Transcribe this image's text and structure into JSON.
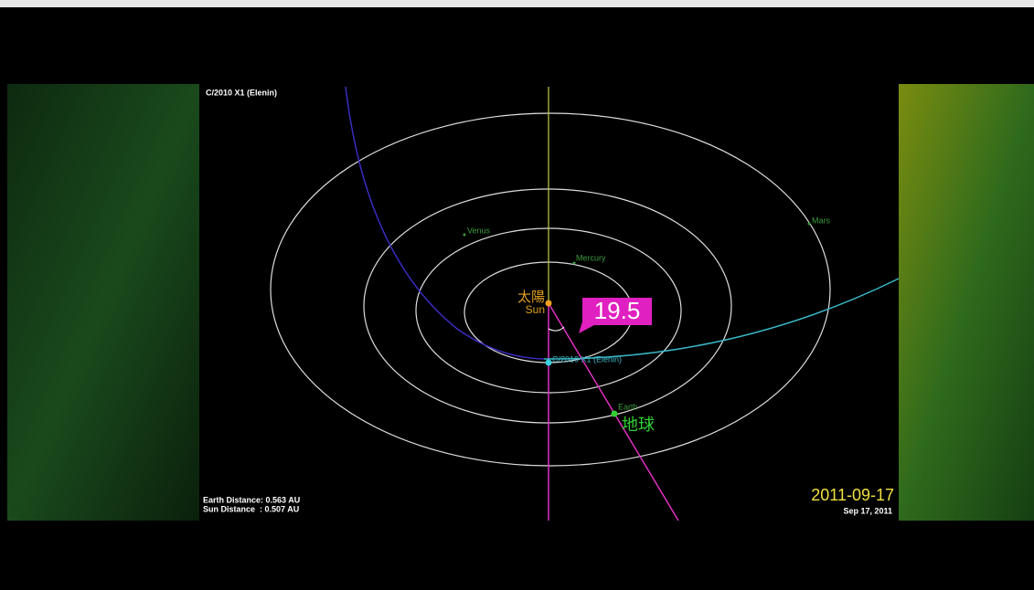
{
  "title": "C/2010 X1 (Elenin)",
  "labels": {
    "venus": "Venus",
    "mercury": "Mercury",
    "mars": "Mars",
    "earth": "Earth",
    "sun": "Sun",
    "sun_cjk": "太陽",
    "earth_cjk": "地球",
    "comet": "C/2010 X1 (Elenin)"
  },
  "angle": "19.5",
  "earth_distance": "Earth Distance: 0.563 AU",
  "sun_distance": "Sun Distance  : 0.507 AU",
  "date": "2011-09-17",
  "date_long": "Sep 17, 2011"
}
